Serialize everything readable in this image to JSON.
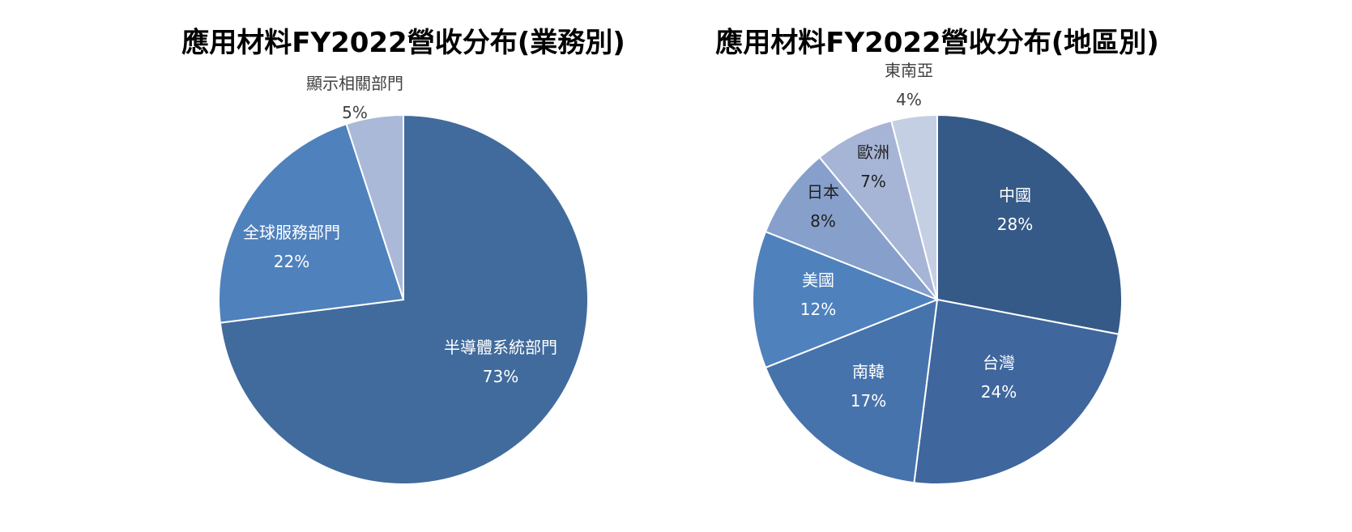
{
  "chart_data": [
    {
      "type": "pie",
      "title": "應用材料FY2022營收分布(業務別)",
      "slices": [
        {
          "label": "半導體系統部門",
          "value": 73,
          "value_label": "73%",
          "color": "#416B9C",
          "text_color": "#FFFFFF"
        },
        {
          "label": "全球服務部門",
          "value": 22,
          "value_label": "22%",
          "color": "#4F81BD",
          "text_color": "#FFFFFF"
        },
        {
          "label": "顯示相關部門",
          "value": 5,
          "value_label": "5%",
          "color": "#A9B9D7",
          "text_color": "#404040"
        }
      ]
    },
    {
      "type": "pie",
      "title": "應用材料FY2022營收分布(地區別)",
      "slices": [
        {
          "label": "中國",
          "value": 28,
          "value_label": "28%",
          "color": "#355A87",
          "text_color": "#FFFFFF"
        },
        {
          "label": "台灣",
          "value": 24,
          "value_label": "24%",
          "color": "#3F669D",
          "text_color": "#FFFFFF"
        },
        {
          "label": "南韓",
          "value": 17,
          "value_label": "17%",
          "color": "#4773AC",
          "text_color": "#FFFFFF"
        },
        {
          "label": "美國",
          "value": 12,
          "value_label": "12%",
          "color": "#4F81BD",
          "text_color": "#FFFFFF"
        },
        {
          "label": "日本",
          "value": 8,
          "value_label": "8%",
          "color": "#87A0CB",
          "text_color": "#1F1F1F"
        },
        {
          "label": "歐洲",
          "value": 7,
          "value_label": "7%",
          "color": "#A6B5D6",
          "text_color": "#1F1F1F"
        },
        {
          "label": "東南亞",
          "value": 4,
          "value_label": "4%",
          "color": "#C5CFE4",
          "text_color": "#404040"
        }
      ]
    }
  ]
}
